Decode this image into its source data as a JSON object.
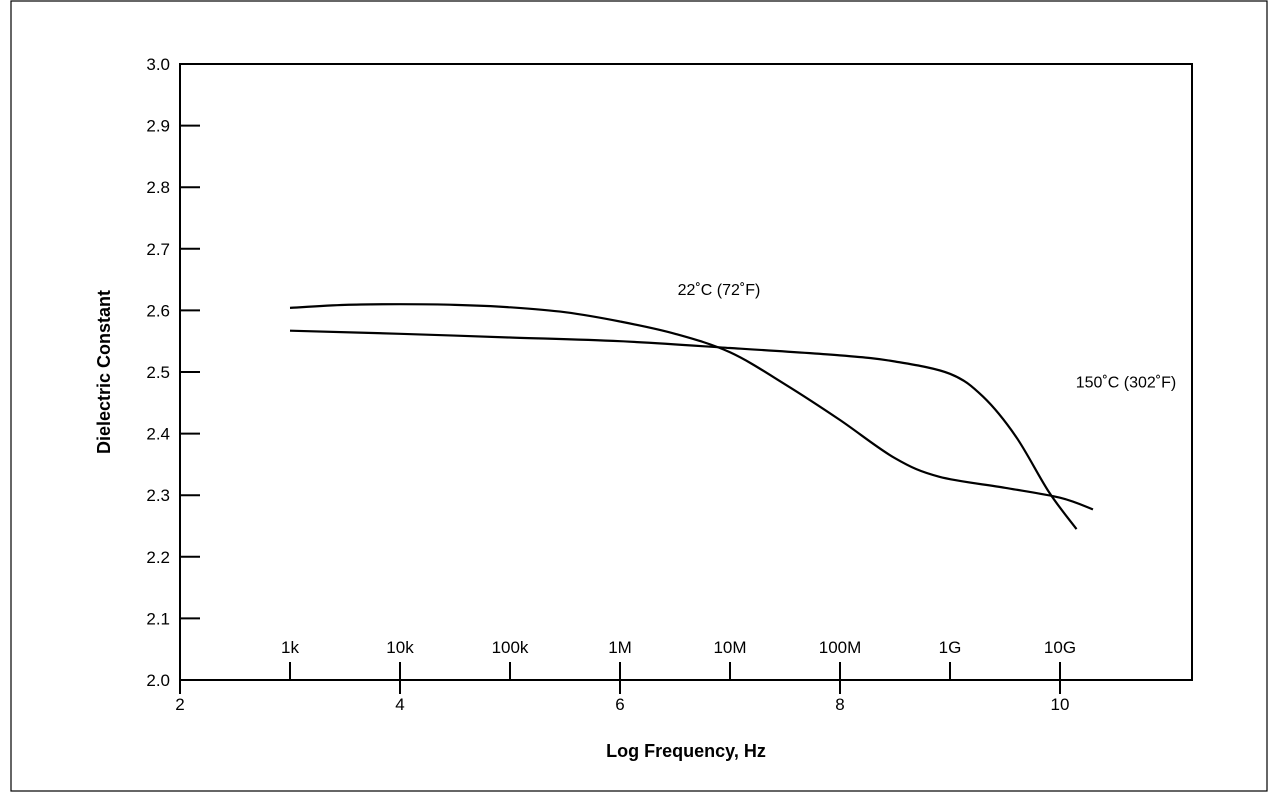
{
  "chart_data": {
    "type": "line",
    "xlabel": "Log Frequency, Hz",
    "ylabel": "Dielectric Constant",
    "xlim": [
      2,
      11.2
    ],
    "ylim": [
      2.0,
      3.0
    ],
    "x_ticks": [
      2,
      4,
      6,
      8,
      10
    ],
    "y_ticks": [
      2.0,
      2.1,
      2.2,
      2.3,
      2.4,
      2.5,
      2.6,
      2.7,
      2.8,
      2.9,
      3.0
    ],
    "secondary_x_ticks": [
      {
        "x": 3,
        "label": "1k"
      },
      {
        "x": 4,
        "label": "10k"
      },
      {
        "x": 5,
        "label": "100k"
      },
      {
        "x": 6,
        "label": "1M"
      },
      {
        "x": 7,
        "label": "10M"
      },
      {
        "x": 8,
        "label": "100M"
      },
      {
        "x": 9,
        "label": "1G"
      },
      {
        "x": 10,
        "label": "10G"
      }
    ],
    "grid": false,
    "legend": "none",
    "series": [
      {
        "name": "22˚C (72˚F)",
        "x": [
          3.0,
          3.5,
          4.0,
          4.5,
          5.0,
          5.5,
          6.0,
          6.5,
          7.0,
          7.5,
          8.0,
          8.5,
          8.9,
          9.5,
          10.0,
          10.3
        ],
        "y": [
          2.604,
          2.609,
          2.61,
          2.609,
          2.605,
          2.597,
          2.582,
          2.562,
          2.532,
          2.48,
          2.422,
          2.36,
          2.33,
          2.312,
          2.296,
          2.277
        ]
      },
      {
        "name": "150˚C (302˚F)",
        "x": [
          3.0,
          4.0,
          5.0,
          6.0,
          7.0,
          8.0,
          8.5,
          9.0,
          9.3,
          9.6,
          9.9,
          10.15
        ],
        "y": [
          2.567,
          2.562,
          2.556,
          2.55,
          2.539,
          2.527,
          2.517,
          2.497,
          2.46,
          2.395,
          2.305,
          2.245
        ]
      }
    ],
    "annotations": [
      {
        "text": "22˚C (72˚F)",
        "x": 6.9,
        "y": 2.625
      },
      {
        "text": "150˚C (302˚F)",
        "x": 10.6,
        "y": 2.475
      }
    ]
  }
}
